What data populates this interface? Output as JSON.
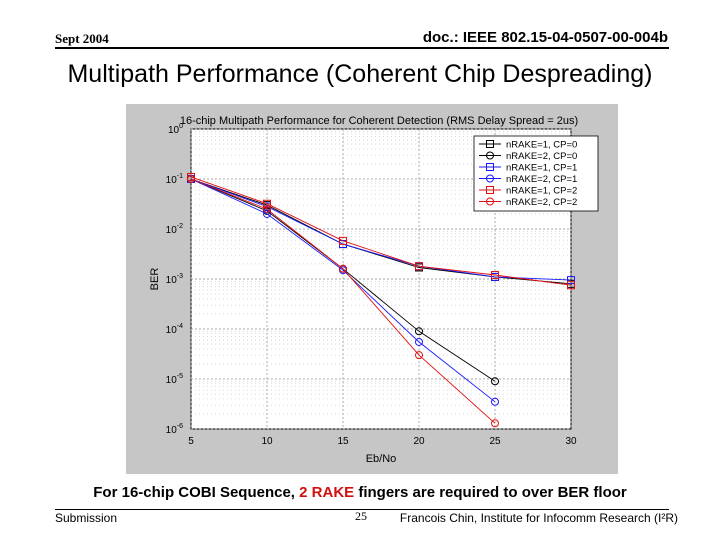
{
  "header": {
    "date": "Sept 2004",
    "doc_id": "doc.: IEEE 802.15-04-0507-00-004b"
  },
  "slide_title": "Multipath Performance (Coherent Chip Despreading)",
  "caption": {
    "before": "For 16-chip COBI Sequence, ",
    "highlight": "2 RAKE",
    "after": " fingers are required to over BER floor"
  },
  "footer": {
    "left": "Submission",
    "page": "25",
    "right": "Francois Chin, Institute for Infocomm Research (I²R)"
  },
  "colors": {
    "black": "#000000",
    "blue": "#1a1aff",
    "red": "#e01010",
    "panel": "#c6c6c6"
  },
  "chart_data": {
    "type": "line",
    "title": "16-chip Multipath Performance for Coherent Detection (RMS Delay Spread = 2us)",
    "xlabel": "Eb/No",
    "ylabel": "BER",
    "y_scale": "log",
    "xlim": [
      5,
      30
    ],
    "ylim_exp": [
      -6,
      0
    ],
    "x_ticks": [
      "5",
      "10",
      "15",
      "20",
      "25",
      "30"
    ],
    "y_ticks": [
      {
        "base": "10",
        "exp": "0"
      },
      {
        "base": "10",
        "exp": "-1"
      },
      {
        "base": "10",
        "exp": "-2"
      },
      {
        "base": "10",
        "exp": "-3"
      },
      {
        "base": "10",
        "exp": "-4"
      },
      {
        "base": "10",
        "exp": "-5"
      },
      {
        "base": "10",
        "exp": "-6"
      }
    ],
    "grid": true,
    "legend_position": "top-right",
    "series": [
      {
        "name": "nRAKE=1, CP=0",
        "color": "#000000",
        "marker": "square",
        "x": [
          5,
          10,
          15,
          20,
          25,
          30
        ],
        "y": [
          0.1,
          0.03,
          0.005,
          0.0017,
          0.0011,
          0.0008
        ]
      },
      {
        "name": "nRAKE=2, CP=0",
        "color": "#000000",
        "marker": "circle",
        "x": [
          5,
          10,
          15,
          20,
          25
        ],
        "y": [
          0.1,
          0.023,
          0.0016,
          9e-05,
          9e-06
        ]
      },
      {
        "name": "nRAKE=1, CP=1",
        "color": "#1a1aff",
        "marker": "square",
        "x": [
          5,
          10,
          15,
          20,
          25,
          30
        ],
        "y": [
          0.1,
          0.028,
          0.005,
          0.0018,
          0.0011,
          0.00095
        ]
      },
      {
        "name": "nRAKE=2, CP=1",
        "color": "#1a1aff",
        "marker": "circle",
        "x": [
          5,
          10,
          15,
          20,
          25
        ],
        "y": [
          0.1,
          0.02,
          0.0015,
          5.5e-05,
          3.5e-06
        ]
      },
      {
        "name": "nRAKE=1, CP=2",
        "color": "#e01010",
        "marker": "square",
        "x": [
          5,
          10,
          15,
          20,
          25,
          30
        ],
        "y": [
          0.11,
          0.032,
          0.0058,
          0.0018,
          0.0012,
          0.00075
        ]
      },
      {
        "name": "nRAKE=2, CP=2",
        "color": "#e01010",
        "marker": "circle",
        "x": [
          5,
          10,
          15,
          20,
          25
        ],
        "y": [
          0.1,
          0.025,
          0.0016,
          3e-05,
          1.3e-06
        ]
      }
    ]
  }
}
